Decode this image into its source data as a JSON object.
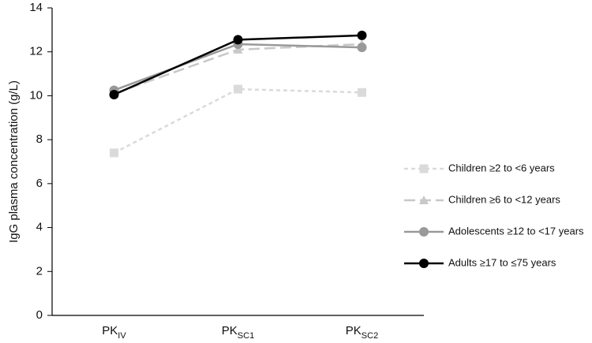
{
  "chart_data": {
    "type": "line",
    "y_label": "IgG plasma concentration (g/L)",
    "categories": [
      "PKIV",
      "PKSC1",
      "PKSC2"
    ],
    "series": [
      {
        "name": "Children ≥2  to <6 years",
        "color": "#dadada",
        "marker": "square",
        "dash": "dashed",
        "values": [
          7.4,
          10.3,
          10.15
        ]
      },
      {
        "name": "Children ≥6 to <12 years",
        "color": "#c8c8c8",
        "marker": "triangle",
        "dash": "longdash",
        "values": [
          10.1,
          12.1,
          12.35
        ]
      },
      {
        "name": "Adolescents ≥12 to <17 years",
        "color": "#999999",
        "marker": "circle",
        "dash": "solid",
        "values": [
          10.25,
          12.35,
          12.2
        ]
      },
      {
        "name": "Adults ≥17 to ≤75 years",
        "color": "#000000",
        "marker": "circle",
        "dash": "solid",
        "values": [
          10.05,
          12.55,
          12.75
        ]
      }
    ],
    "ylim": [
      0,
      14
    ],
    "yticks": [
      0,
      2,
      4,
      6,
      8,
      10,
      12,
      14
    ],
    "grid": false,
    "legend": "right"
  }
}
